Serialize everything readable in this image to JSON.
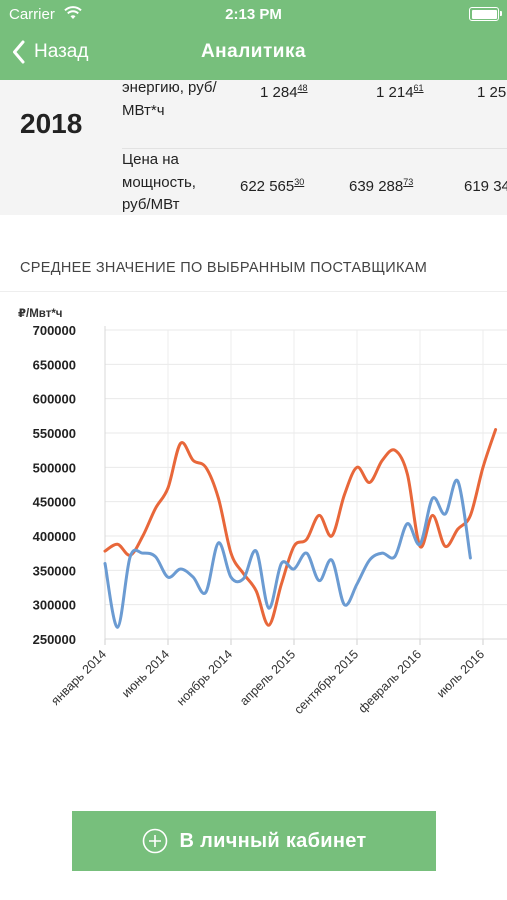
{
  "status": {
    "carrier": "Carrier",
    "time": "2:13 PM"
  },
  "nav": {
    "back_label": "Назад",
    "title": "Аналитика"
  },
  "table": {
    "year": "2018",
    "rows": [
      {
        "label": "энергию, руб/ МВт*ч",
        "cells": [
          {
            "int": "1 284",
            "frac": "48"
          },
          {
            "int": "1 214",
            "frac": "61"
          },
          {
            "int": "1 25",
            "frac": ""
          }
        ]
      },
      {
        "label": "Цена на мощность, руб/МВт",
        "cells": [
          {
            "int": "622 565",
            "frac": "30"
          },
          {
            "int": "639 288",
            "frac": "73"
          },
          {
            "int": "619 34",
            "frac": ""
          }
        ]
      }
    ]
  },
  "section_title": "СРЕДНЕЕ ЗНАЧЕНИЕ ПО ВЫБРАННЫМ ПОСТАВЩИКАМ",
  "chart_data": {
    "type": "line",
    "ylabel": "₽/Мвт*ч",
    "ylim": [
      250000,
      700000
    ],
    "yticks": [
      250000,
      300000,
      350000,
      400000,
      450000,
      500000,
      550000,
      600000,
      650000,
      700000
    ],
    "xtick_labels": [
      {
        "label": "январь 2014",
        "month": 0
      },
      {
        "label": "июнь 2014",
        "month": 5
      },
      {
        "label": "ноябрь 2014",
        "month": 10
      },
      {
        "label": "апрель 2015",
        "month": 15
      },
      {
        "label": "сентябрь 2015",
        "month": 20
      },
      {
        "label": "февраль 2016",
        "month": 25
      },
      {
        "label": "июль 2016",
        "month": 30
      }
    ],
    "grid": true,
    "series": [
      {
        "color": "#e8673a",
        "values": [
          [
            0,
            378000
          ],
          [
            1,
            388000
          ],
          [
            2,
            372000
          ],
          [
            3,
            400000
          ],
          [
            4,
            440000
          ],
          [
            5,
            470000
          ],
          [
            6,
            535000
          ],
          [
            7,
            510000
          ],
          [
            8,
            500000
          ],
          [
            9,
            455000
          ],
          [
            10,
            375000
          ],
          [
            11,
            345000
          ],
          [
            12,
            320000
          ],
          [
            13,
            270000
          ],
          [
            14,
            330000
          ],
          [
            15,
            385000
          ],
          [
            16,
            395000
          ],
          [
            17,
            430000
          ],
          [
            18,
            400000
          ],
          [
            19,
            460000
          ],
          [
            20,
            500000
          ],
          [
            21,
            478000
          ],
          [
            22,
            510000
          ],
          [
            23,
            525000
          ],
          [
            24,
            490000
          ],
          [
            25,
            385000
          ],
          [
            26,
            430000
          ],
          [
            27,
            385000
          ],
          [
            28,
            410000
          ],
          [
            29,
            430000
          ],
          [
            30,
            500000
          ],
          [
            31,
            555000
          ]
        ]
      },
      {
        "color": "#6b9bd2",
        "values": [
          [
            0,
            360000
          ],
          [
            1,
            267000
          ],
          [
            2,
            370000
          ],
          [
            3,
            375000
          ],
          [
            4,
            370000
          ],
          [
            5,
            340000
          ],
          [
            6,
            352000
          ],
          [
            7,
            340000
          ],
          [
            8,
            318000
          ],
          [
            9,
            390000
          ],
          [
            10,
            340000
          ],
          [
            11,
            338000
          ],
          [
            12,
            378000
          ],
          [
            13,
            295000
          ],
          [
            14,
            360000
          ],
          [
            15,
            352000
          ],
          [
            16,
            375000
          ],
          [
            17,
            335000
          ],
          [
            18,
            365000
          ],
          [
            19,
            300000
          ],
          [
            20,
            330000
          ],
          [
            21,
            365000
          ],
          [
            22,
            375000
          ],
          [
            23,
            370000
          ],
          [
            24,
            418000
          ],
          [
            25,
            388000
          ],
          [
            26,
            455000
          ],
          [
            27,
            432000
          ],
          [
            28,
            480000
          ],
          [
            29,
            368000
          ]
        ]
      }
    ]
  }
}
